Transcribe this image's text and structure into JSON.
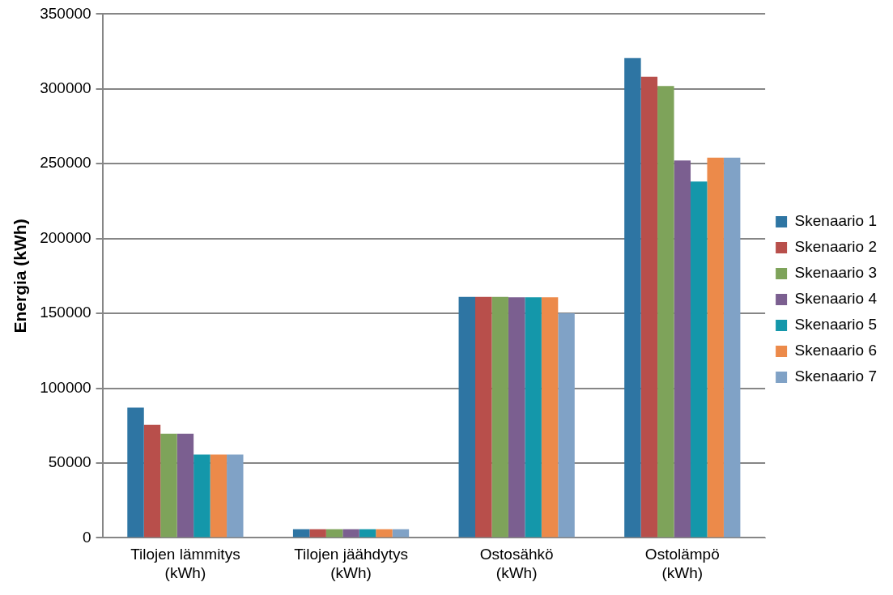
{
  "chart_data": {
    "type": "bar",
    "ylabel": "Energia (kWh)",
    "categories": [
      "Tilojen lämmitys (kWh)",
      "Tilojen jäähdytys (kWh)",
      "Ostosähkö (kWh)",
      "Ostolämpö (kWh)"
    ],
    "series": [
      {
        "name": "Skenaario 1",
        "color": "#2e75a3",
        "values": [
          87000,
          5700,
          161000,
          320600
        ]
      },
      {
        "name": "Skenaario 2",
        "color": "#b84f4b",
        "values": [
          75500,
          5700,
          161000,
          308200
        ]
      },
      {
        "name": "Skenaario 3",
        "color": "#7ea35a",
        "values": [
          69600,
          5700,
          161000,
          302000
        ]
      },
      {
        "name": "Skenaario 4",
        "color": "#7b5f90",
        "values": [
          69600,
          5700,
          160800,
          252200
        ]
      },
      {
        "name": "Skenaario 5",
        "color": "#1497aa",
        "values": [
          55600,
          5700,
          160800,
          238100
        ]
      },
      {
        "name": "Skenaario 6",
        "color": "#ec8a4a",
        "values": [
          55600,
          5700,
          160800,
          254000
        ]
      },
      {
        "name": "Skenaario 7",
        "color": "#80a2c6",
        "values": [
          55600,
          5700,
          150000,
          254000
        ]
      }
    ],
    "ylim": [
      0,
      350000
    ],
    "yticks": [
      0,
      50000,
      100000,
      150000,
      200000,
      250000,
      300000,
      350000
    ],
    "grid": "y",
    "legend": "right"
  }
}
